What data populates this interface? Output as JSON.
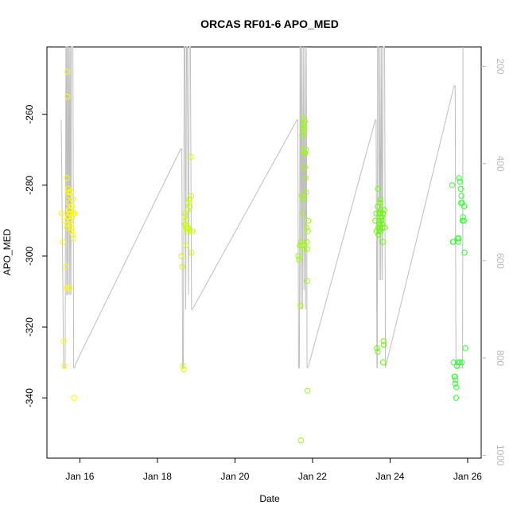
{
  "chart_data": {
    "type": "scatter",
    "title": "ORCAS RF01-6 APO_MED",
    "xlabel": "Date",
    "ylabel": "APO_MED",
    "x_ticks": [
      {
        "day": 16,
        "label": "Jan 16"
      },
      {
        "day": 18,
        "label": "Jan 18"
      },
      {
        "day": 20,
        "label": "Jan 20"
      },
      {
        "day": 22,
        "label": "Jan 22"
      },
      {
        "day": 24,
        "label": "Jan 24"
      },
      {
        "day": 26,
        "label": "Jan 26"
      }
    ],
    "y_ticks": [
      -340,
      -320,
      -300,
      -280,
      -260
    ],
    "y2_ticks": [
      200,
      400,
      600,
      800,
      1000
    ],
    "xlim": [
      15.15,
      26.35
    ],
    "ylim": [
      -357,
      -241
    ],
    "y2lim": [
      1006,
      160
    ],
    "grid": false,
    "colors": {
      "flight1": "#ffff00",
      "flight2": "#ccff00",
      "flight3": "#99ff00",
      "flight4": "#66ff00",
      "flight5": "#33ff33",
      "secondary_line": "#bebebe",
      "right_axis": "#b8b8b8"
    },
    "series": [
      {
        "color": "#ffff00",
        "x": [
          15.53,
          15.56,
          15.58,
          15.6,
          15.63,
          15.65,
          15.66,
          15.67,
          15.68,
          15.69,
          15.7,
          15.71,
          15.72,
          15.73,
          15.74,
          15.75,
          15.76,
          15.77,
          15.78,
          15.79,
          15.8,
          15.81,
          15.82,
          15.83,
          15.84,
          15.85,
          15.66,
          15.69,
          15.72,
          15.76,
          15.78,
          15.68,
          15.73,
          15.86,
          15.62
        ],
        "y": [
          -288,
          -296,
          -324,
          -331,
          -303,
          -309,
          -278,
          -248,
          -255,
          -281,
          -282,
          -283,
          -285,
          -287,
          -288,
          -290,
          -291,
          -292,
          -293,
          -289,
          -286,
          -284,
          -288,
          -294,
          -295,
          -340,
          -292,
          -289,
          -287,
          -282,
          -286,
          -291,
          -309,
          -288,
          -290
        ]
      },
      {
        "color": "#ccff00",
        "x": [
          18.62,
          18.64,
          18.66,
          18.68,
          18.7,
          18.72,
          18.74,
          18.76,
          18.78,
          18.8,
          18.82,
          18.84,
          18.86,
          18.88,
          18.9,
          18.71,
          18.75,
          18.79,
          18.83,
          18.87,
          18.73,
          18.77
        ],
        "y": [
          -300,
          -303,
          -331,
          -332,
          -289,
          -291,
          -297,
          -292,
          -287,
          -285,
          -284,
          -293,
          -272,
          -299,
          -293,
          -288,
          -290,
          -292,
          -286,
          -283,
          -292,
          -293
        ]
      },
      {
        "color": "#99ff00",
        "x": [
          21.63,
          21.65,
          21.67,
          21.69,
          21.7,
          21.72,
          21.73,
          21.74,
          21.75,
          21.76,
          21.77,
          21.78,
          21.79,
          21.8,
          21.81,
          21.82,
          21.83,
          21.84,
          21.85,
          21.86,
          21.87,
          21.88,
          21.89,
          21.71,
          21.74,
          21.77,
          21.8,
          21.83,
          21.86,
          21.72,
          21.76
        ],
        "y": [
          -300,
          -301,
          -297,
          -314,
          -352,
          -297,
          -266,
          -270,
          -261,
          -263,
          -264,
          -265,
          -271,
          -262,
          -271,
          -278,
          -282,
          -292,
          -296,
          -307,
          -338,
          -293,
          -290,
          -296,
          -288,
          -284,
          -275,
          -270,
          -298,
          -283,
          -298
        ]
      },
      {
        "color": "#66ff00",
        "x": [
          23.62,
          23.64,
          23.66,
          23.68,
          23.69,
          23.7,
          23.71,
          23.72,
          23.73,
          23.74,
          23.75,
          23.76,
          23.77,
          23.78,
          23.79,
          23.8,
          23.81,
          23.82,
          23.83,
          23.84,
          23.85,
          23.86,
          23.65,
          23.7,
          23.74,
          23.78,
          23.82,
          23.68,
          23.72,
          23.76
        ],
        "y": [
          -290,
          -288,
          -326,
          -327,
          -281,
          -292,
          -293,
          -291,
          -288,
          -285,
          -284,
          -287,
          -289,
          -290,
          -291,
          -292,
          -296,
          -330,
          -324,
          -325,
          -287,
          -292,
          -293,
          -294,
          -292,
          -289,
          -288,
          -286,
          -290,
          -293
        ]
      },
      {
        "color": "#33ff33",
        "x": [
          25.6,
          25.62,
          25.64,
          25.66,
          25.68,
          25.7,
          25.72,
          25.74,
          25.76,
          25.78,
          25.8,
          25.82,
          25.84,
          25.86,
          25.88,
          25.9,
          25.92,
          25.94,
          25.63,
          25.67,
          25.71,
          25.75,
          25.79,
          25.83,
          25.87,
          25.91,
          25.69,
          25.77,
          25.85
        ],
        "y": [
          -280,
          -296,
          -330,
          -334,
          -336,
          -340,
          -331,
          -295,
          -296,
          -278,
          -279,
          -281,
          -283,
          -285,
          -289,
          -290,
          -299,
          -326,
          -296,
          -334,
          -337,
          -330,
          -330,
          -285,
          -290,
          -286,
          -335,
          -295,
          -330
        ]
      }
    ],
    "secondary_line": {
      "x": [
        15.52,
        15.58,
        15.62,
        15.64,
        15.65,
        15.66,
        15.67,
        15.68,
        15.69,
        15.7,
        15.72,
        15.74,
        15.75,
        15.77,
        15.78,
        15.8,
        15.82,
        15.84,
        15.86,
        15.88,
        15.9,
        18.6,
        18.63,
        18.65,
        18.67,
        18.69,
        18.71,
        18.73,
        18.75,
        18.77,
        18.8,
        18.82,
        18.85,
        18.88,
        18.9,
        21.6,
        21.62,
        21.64,
        21.66,
        21.68,
        21.69,
        21.7,
        21.72,
        21.74,
        21.76,
        21.78,
        21.8,
        21.82,
        21.84,
        21.86,
        21.88,
        21.9,
        23.62,
        23.64,
        23.66,
        23.67,
        23.68,
        23.7,
        23.72,
        23.74,
        23.76,
        23.78,
        23.8,
        23.82,
        23.84,
        23.86,
        23.88,
        25.65,
        25.68,
        25.7,
        25.72,
        25.74,
        25.76,
        25.78,
        25.8,
        25.82,
        25.84,
        25.85,
        25.86,
        25.87,
        25.88
      ],
      "y": [
        310,
        820,
        820,
        160,
        160,
        670,
        670,
        160,
        160,
        670,
        160,
        670,
        160,
        670,
        160,
        160,
        160,
        820,
        820,
        815,
        810,
        370,
        370,
        820,
        820,
        160,
        160,
        700,
        160,
        160,
        670,
        160,
        160,
        700,
        700,
        310,
        310,
        820,
        820,
        160,
        160,
        700,
        160,
        700,
        160,
        660,
        160,
        700,
        160,
        820,
        820,
        815,
        310,
        310,
        820,
        820,
        160,
        160,
        640,
        160,
        640,
        160,
        640,
        160,
        160,
        160,
        820,
        240,
        240,
        820,
        820,
        820,
        820,
        820,
        820,
        820,
        820,
        820,
        820,
        820,
        160
      ]
    }
  }
}
